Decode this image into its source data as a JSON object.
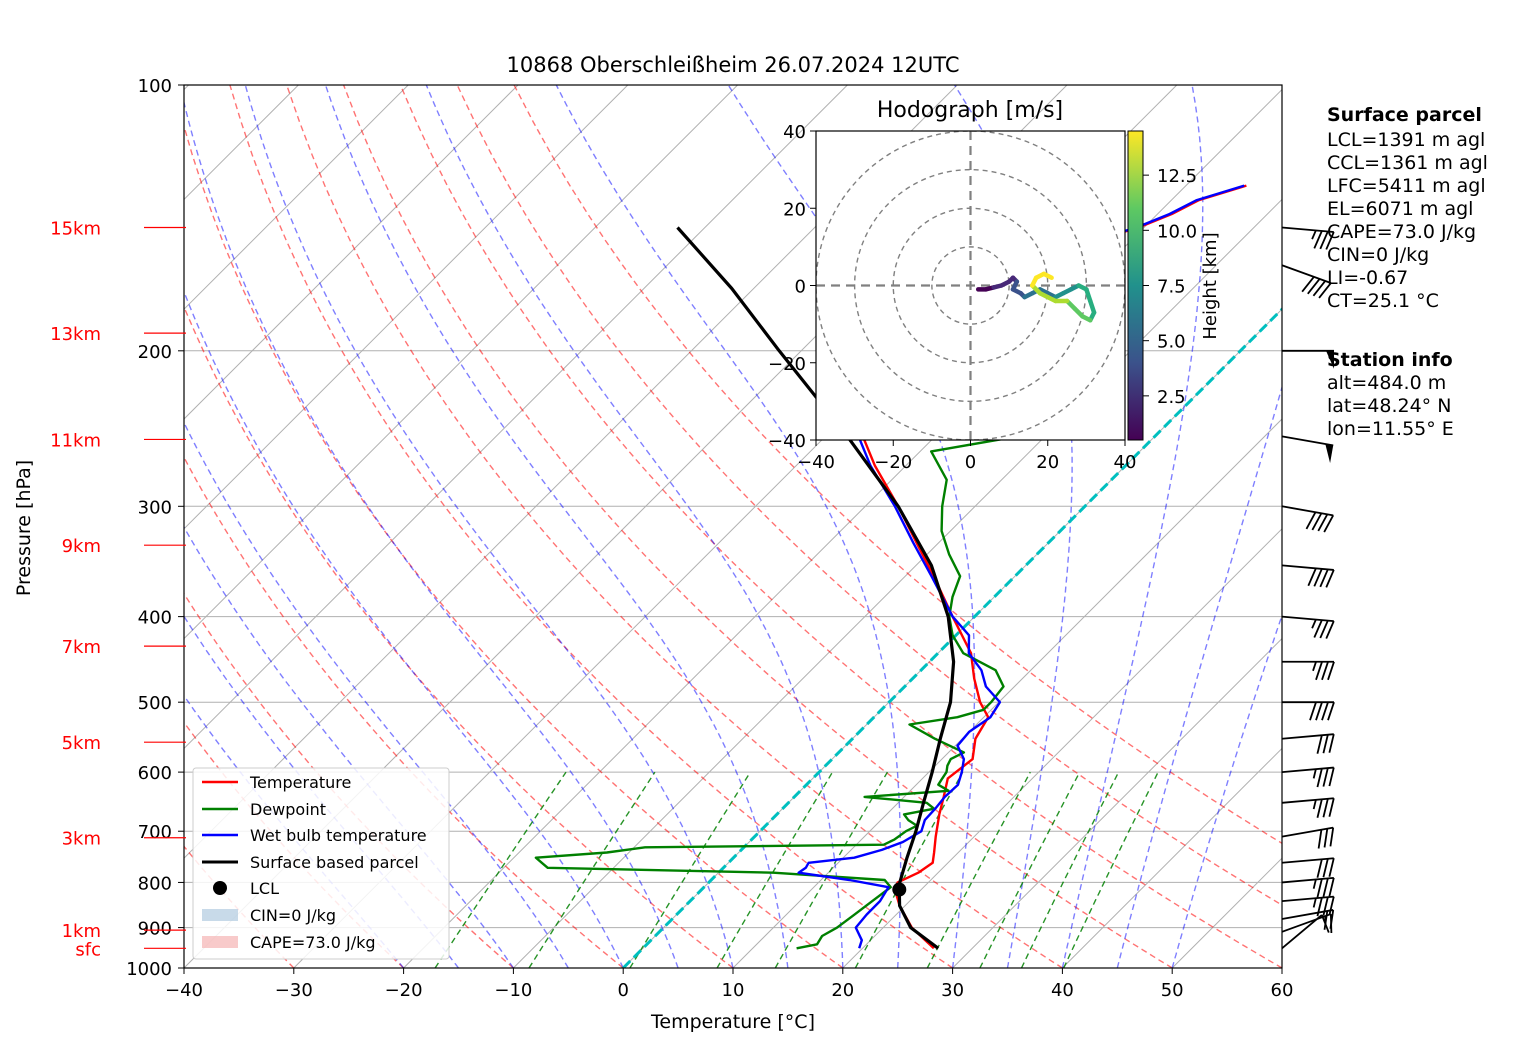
{
  "title": "10868 Oberschleißheim 26.07.2024 12UTC",
  "colors": {
    "temperature": "#ff0000",
    "dewpoint": "#008000",
    "wetbulb": "#0000ff",
    "parcel": "#000000",
    "isotherm_zero": "#00bfbf",
    "dry_adiabat": "#ff0000",
    "moist_adiabat": "#0000ff",
    "mixing_ratio": "#008000",
    "height_label": "#ff0000",
    "cin_fill": "#b0cbe0",
    "cape_fill": "#f5b4b4"
  },
  "chart_data": {
    "type": "line",
    "subtype": "skew-T log-p diagram",
    "xlabel": "Temperature [°C]",
    "ylabel": "Pressure [hPa]",
    "xlim": [
      -40,
      60
    ],
    "ylim": [
      1000,
      100
    ],
    "y_scale": "log",
    "grid": true,
    "x_ticks": [
      "−40",
      "−30",
      "−20",
      "−10",
      "0",
      "10",
      "20",
      "30",
      "40",
      "50",
      "60"
    ],
    "y_ticks": [
      "100",
      "200",
      "300",
      "400",
      "500",
      "600",
      "700",
      "800",
      "900",
      "1000"
    ],
    "height_labels": [
      {
        "label": "sfc",
        "p": 950
      },
      {
        "label": "1km",
        "p": 906
      },
      {
        "label": "3km",
        "p": 712
      },
      {
        "label": "5km",
        "p": 555
      },
      {
        "label": "7km",
        "p": 432
      },
      {
        "label": "9km",
        "p": 332
      },
      {
        "label": "11km",
        "p": 252
      },
      {
        "label": "13km",
        "p": 191
      },
      {
        "label": "15km",
        "p": 145
      }
    ],
    "legend": {
      "position": "lower-left",
      "entries": [
        "Temperature",
        "Dewpoint",
        "Wet bulb temperature",
        "Surface based parcel",
        "LCL",
        "CIN=0 J/kg",
        "CAPE=73.0 J/kg"
      ]
    },
    "series": [
      {
        "name": "Temperature",
        "points": [
          [
            950,
            26.5
          ],
          [
            900,
            22.6
          ],
          [
            850,
            19.5
          ],
          [
            815,
            17.6
          ],
          [
            800,
            17.2
          ],
          [
            780,
            18.2
          ],
          [
            760,
            18.6
          ],
          [
            740,
            17.8
          ],
          [
            710,
            16.5
          ],
          [
            670,
            14.8
          ],
          [
            640,
            13.6
          ],
          [
            610,
            12.3
          ],
          [
            580,
            12.8
          ],
          [
            550,
            11.2
          ],
          [
            520,
            10.4
          ],
          [
            500,
            8.3
          ],
          [
            470,
            5.6
          ],
          [
            440,
            3.0
          ],
          [
            400,
            -2.0
          ],
          [
            360,
            -7.4
          ],
          [
            330,
            -12.0
          ],
          [
            300,
            -17.0
          ],
          [
            270,
            -22.8
          ],
          [
            240,
            -28.6
          ],
          [
            210,
            -35.0
          ],
          [
            200,
            -36.7
          ],
          [
            190,
            -36.9
          ],
          [
            180,
            -36.1
          ],
          [
            175,
            -34.8
          ],
          [
            170,
            -30.2
          ],
          [
            165,
            -30.0
          ],
          [
            160,
            -26.0
          ],
          [
            155,
            -24.7
          ],
          [
            150,
            -23.3
          ],
          [
            145,
            -20.5
          ],
          [
            140,
            -18.7
          ],
          [
            135,
            -17.5
          ],
          [
            130,
            -14.5
          ]
        ]
      },
      {
        "name": "Dewpoint",
        "points": [
          [
            950,
            14.0
          ],
          [
            940,
            15.5
          ],
          [
            920,
            15.2
          ],
          [
            900,
            15.8
          ],
          [
            870,
            16.2
          ],
          [
            840,
            16.6
          ],
          [
            810,
            17.0
          ],
          [
            795,
            15.8
          ],
          [
            780,
            5.0
          ],
          [
            770,
            -16.0
          ],
          [
            760,
            -17.0
          ],
          [
            750,
            -18.0
          ],
          [
            740,
            -12.0
          ],
          [
            730,
            -9.0
          ],
          [
            725,
            12.5
          ],
          [
            715,
            13.0
          ],
          [
            700,
            13.3
          ],
          [
            690,
            13.8
          ],
          [
            680,
            12.5
          ],
          [
            670,
            11.6
          ],
          [
            660,
            13.8
          ],
          [
            650,
            12.6
          ],
          [
            640,
            6.4
          ],
          [
            630,
            13.5
          ],
          [
            620,
            12.0
          ],
          [
            610,
            11.8
          ],
          [
            600,
            11.6
          ],
          [
            590,
            11.1
          ],
          [
            580,
            10.8
          ],
          [
            570,
            11.4
          ],
          [
            550,
            7.5
          ],
          [
            530,
            3.9
          ],
          [
            520,
            7.6
          ],
          [
            510,
            9.3
          ],
          [
            500,
            9.3
          ],
          [
            480,
            9.0
          ],
          [
            460,
            6.8
          ],
          [
            440,
            2.3
          ],
          [
            420,
            -0.3
          ],
          [
            400,
            -2.3
          ],
          [
            380,
            -3.8
          ],
          [
            360,
            -5.0
          ],
          [
            340,
            -8.0
          ],
          [
            320,
            -10.8
          ],
          [
            300,
            -13.0
          ],
          [
            280,
            -15.0
          ],
          [
            260,
            -19.0
          ],
          [
            250,
            -12.5
          ],
          [
            240,
            -14.0
          ],
          [
            225,
            -17.5
          ],
          [
            210,
            -20.5
          ],
          [
            200,
            -21.0
          ],
          [
            190,
            -18.0
          ],
          [
            185,
            -16.0
          ],
          [
            180,
            -23.0
          ],
          [
            175,
            -25.0
          ],
          [
            170,
            -28.4
          ],
          [
            165,
            -25.0
          ],
          [
            160,
            -28.0
          ],
          [
            155,
            -29.0
          ],
          [
            150,
            -26.0
          ],
          [
            145,
            -24.5
          ],
          [
            140,
            -23.5
          ],
          [
            135,
            -24.8
          ]
        ]
      },
      {
        "name": "Wet bulb temperature",
        "points": [
          [
            950,
            19.7
          ],
          [
            930,
            19.2
          ],
          [
            900,
            17.5
          ],
          [
            870,
            17.3
          ],
          [
            840,
            17.3
          ],
          [
            810,
            16.8
          ],
          [
            795,
            12.6
          ],
          [
            780,
            7.3
          ],
          [
            770,
            7.5
          ],
          [
            760,
            7.3
          ],
          [
            750,
            11.0
          ],
          [
            735,
            12.8
          ],
          [
            720,
            14.0
          ],
          [
            700,
            14.7
          ],
          [
            680,
            14.0
          ],
          [
            660,
            13.9
          ],
          [
            640,
            13.7
          ],
          [
            620,
            13.8
          ],
          [
            600,
            13.0
          ],
          [
            580,
            12.0
          ],
          [
            560,
            10.2
          ],
          [
            540,
            10.0
          ],
          [
            520,
            10.6
          ],
          [
            500,
            10.1
          ],
          [
            480,
            7.4
          ],
          [
            460,
            5.5
          ],
          [
            440,
            2.8
          ],
          [
            420,
            1.2
          ],
          [
            400,
            -2.0
          ],
          [
            360,
            -7.6
          ],
          [
            330,
            -12.3
          ],
          [
            300,
            -17.3
          ],
          [
            270,
            -23.2
          ],
          [
            240,
            -29.0
          ],
          [
            210,
            -35.1
          ],
          [
            200,
            -36.8
          ],
          [
            190,
            -36.9
          ],
          [
            180,
            -36.0
          ],
          [
            175,
            -34.8
          ],
          [
            170,
            -30.3
          ],
          [
            165,
            -30.2
          ],
          [
            160,
            -26.2
          ],
          [
            155,
            -24.9
          ],
          [
            150,
            -23.5
          ],
          [
            145,
            -20.7
          ],
          [
            140,
            -18.9
          ],
          [
            135,
            -17.7
          ],
          [
            130,
            -14.7
          ]
        ]
      },
      {
        "name": "Surface based parcel",
        "points": [
          [
            950,
            26.9
          ],
          [
            900,
            22.5
          ],
          [
            850,
            19.5
          ],
          [
            815,
            18.0
          ],
          [
            800,
            17.4
          ],
          [
            750,
            15.8
          ],
          [
            700,
            14.2
          ],
          [
            650,
            12.3
          ],
          [
            600,
            10.3
          ],
          [
            550,
            8.0
          ],
          [
            500,
            5.6
          ],
          [
            450,
            2.2
          ],
          [
            400,
            -2.4
          ],
          [
            350,
            -8.6
          ],
          [
            300,
            -17.0
          ],
          [
            250,
            -28.0
          ],
          [
            200,
            -42.0
          ],
          [
            170,
            -52.0
          ],
          [
            145,
            -62.5
          ]
        ]
      }
    ],
    "lcl": {
      "p": 815,
      "t": 18.0
    },
    "hodograph": {
      "title": "Hodograph [m/s]",
      "xlim": [
        -40,
        40
      ],
      "ylim": [
        -40,
        40
      ],
      "ticks": [
        "−40",
        "−20",
        "0",
        "20",
        "40"
      ],
      "rings": [
        10,
        20,
        30,
        40
      ],
      "colorbar_label": "Height [km]",
      "colorbar_ticks": [
        "2.5",
        "5.0",
        "7.5",
        "10.0",
        "12.5"
      ],
      "colorbar_range": [
        0.5,
        14.5
      ],
      "points": [
        [
          2,
          -1,
          0.5
        ],
        [
          4,
          -1,
          1
        ],
        [
          6,
          -0.5,
          1.5
        ],
        [
          8,
          0,
          2
        ],
        [
          10,
          1,
          2.5
        ],
        [
          11,
          2,
          3
        ],
        [
          12,
          1,
          3.5
        ],
        [
          11,
          -1,
          4
        ],
        [
          13,
          -2,
          4.5
        ],
        [
          14,
          -3,
          5
        ],
        [
          16,
          -2,
          5.5
        ],
        [
          18,
          -1,
          6
        ],
        [
          20,
          -2,
          6.5
        ],
        [
          22,
          -3,
          7
        ],
        [
          24,
          -2,
          7.5
        ],
        [
          26,
          -1,
          8
        ],
        [
          28,
          0,
          8.5
        ],
        [
          30,
          -1,
          9
        ],
        [
          31,
          -4,
          9.5
        ],
        [
          32,
          -7,
          10
        ],
        [
          31,
          -9,
          10.5
        ],
        [
          29,
          -8,
          11
        ],
        [
          27,
          -6,
          11.5
        ],
        [
          25,
          -4,
          12
        ],
        [
          22,
          -4,
          12.5
        ],
        [
          20,
          -3,
          13
        ],
        [
          18,
          -2,
          13.5
        ],
        [
          16,
          0,
          13.8
        ],
        [
          17,
          2,
          14
        ],
        [
          19,
          3,
          14.2
        ],
        [
          21,
          2,
          14.4
        ]
      ]
    },
    "wind_barbs": [
      {
        "p": 950,
        "speed_kt": 10,
        "dir": 230
      },
      {
        "p": 910,
        "speed_kt": 15,
        "dir": 250
      },
      {
        "p": 880,
        "speed_kt": 20,
        "dir": 260
      },
      {
        "p": 840,
        "speed_kt": 35,
        "dir": 265
      },
      {
        "p": 800,
        "speed_kt": 35,
        "dir": 265
      },
      {
        "p": 760,
        "speed_kt": 30,
        "dir": 265
      },
      {
        "p": 710,
        "speed_kt": 30,
        "dir": 260
      },
      {
        "p": 650,
        "speed_kt": 35,
        "dir": 265
      },
      {
        "p": 600,
        "speed_kt": 35,
        "dir": 265
      },
      {
        "p": 550,
        "speed_kt": 30,
        "dir": 265
      },
      {
        "p": 500,
        "speed_kt": 40,
        "dir": 270
      },
      {
        "p": 450,
        "speed_kt": 35,
        "dir": 270
      },
      {
        "p": 400,
        "speed_kt": 35,
        "dir": 275
      },
      {
        "p": 350,
        "speed_kt": 40,
        "dir": 275
      },
      {
        "p": 300,
        "speed_kt": 40,
        "dir": 280
      },
      {
        "p": 250,
        "speed_kt": 50,
        "dir": 280
      },
      {
        "p": 200,
        "speed_kt": 50,
        "dir": 270
      },
      {
        "p": 160,
        "speed_kt": 40,
        "dir": 290
      },
      {
        "p": 145,
        "speed_kt": 35,
        "dir": 275
      }
    ]
  },
  "surface_parcel": {
    "heading": "Surface parcel",
    "lines": [
      "LCL=1391 m agl",
      "CCL=1361 m agl",
      "LFC=5411 m agl",
      "EL=6071 m agl",
      "CAPE=73.0 J/kg",
      "CIN=0 J/kg",
      "LI=-0.67",
      "CT=25.1 °C"
    ]
  },
  "station_info": {
    "heading": "Station info",
    "lines": [
      "alt=484.0 m",
      "lat=48.24° N",
      "lon=11.55° E"
    ]
  }
}
